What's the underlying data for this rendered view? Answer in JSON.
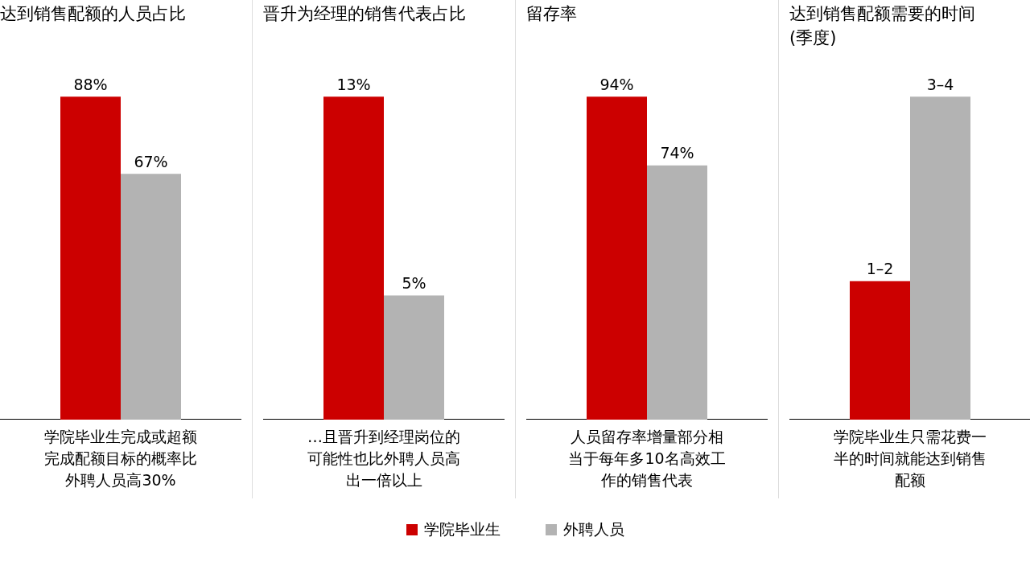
{
  "chart_data": [
    {
      "type": "bar",
      "title": "达到销售配额的人员占比",
      "categories": [
        null
      ],
      "tick_labels": false,
      "legend": "bottom",
      "annotations": [
        "学院毕业生完成或超额完成配额目标的概率比外聘人员高30%"
      ],
      "series": [
        {
          "name": "学院毕业生",
          "color": "#cc0000",
          "values": [
            88
          ],
          "value_labels": [
            "88%"
          ]
        },
        {
          "name": "外聘人员",
          "color": "#b3b3b3",
          "values": [
            67
          ],
          "value_labels": [
            "67%"
          ]
        }
      ]
    },
    {
      "type": "bar",
      "title": "晋升为经理的销售代表占比",
      "categories": [
        null
      ],
      "tick_labels": false,
      "annotations": [
        "…且晋升到经理岗位的可能性也比外聘人员高出一倍以上"
      ],
      "series": [
        {
          "color": "#cc0000",
          "values": [
            13
          ],
          "value_labels": [
            "13%"
          ]
        },
        {
          "color": "#b3b3b3",
          "values": [
            5
          ],
          "value_labels": [
            "5%"
          ]
        }
      ]
    },
    {
      "type": "bar",
      "title": "留存率",
      "categories": [
        null
      ],
      "tick_labels": false,
      "annotations": [
        "人员留存率增量部分相当于每年多10名高效工作的销售代表"
      ],
      "series": [
        {
          "color": "#cc0000",
          "values": [
            94
          ],
          "value_labels": [
            "94%"
          ]
        },
        {
          "color": "#b3b3b3",
          "values": [
            74
          ],
          "value_labels": [
            "74%"
          ]
        }
      ]
    },
    {
      "type": "bar",
      "title": "达到销售配额需要的时间(季度)",
      "categories": [
        null
      ],
      "tick_labels": false,
      "annotations": [
        "学院毕业生只需花费一半的时间就能达到销售配额"
      ],
      "series": [
        {
          "color": "#cc0000",
          "values": [
            1.5
          ],
          "value_labels": [
            "1–2"
          ]
        },
        {
          "color": "#b3b3b3",
          "values": [
            3.5
          ],
          "value_labels": [
            "3–4"
          ]
        }
      ]
    }
  ]
}
